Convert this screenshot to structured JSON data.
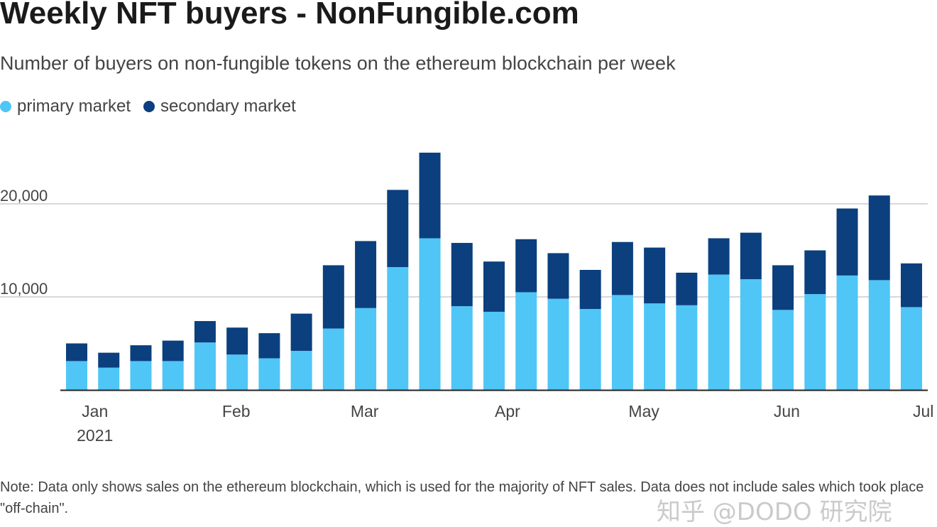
{
  "header": {
    "title": "Weekly NFT buyers - NonFungible.com",
    "subtitle": "Number of buyers on non-fungible tokens on the ethereum blockchain per week"
  },
  "footer": {
    "note": "Note: Data only shows sales on the ethereum blockchain, which is used for the majority of NFT sales. Data does not include sales which took place \"off-chain\".",
    "watermark": "知乎 @DODO 研究院"
  },
  "colors": {
    "primary": "#4fc6f6",
    "secondary": "#0b3f7e",
    "grid": "#cccccc",
    "axis": "#222222"
  },
  "chart_data": {
    "type": "bar",
    "stacked": true,
    "title": "Weekly NFT buyers - NonFungible.com",
    "ylim": [
      0,
      26000
    ],
    "yticks": [
      10000,
      20000
    ],
    "ytick_labels": [
      "10,000",
      "20,000"
    ],
    "grid": true,
    "legend_position": "top-left",
    "legend": [
      "primary market",
      "secondary market"
    ],
    "xtick_labels": [
      {
        "label": "Jan",
        "sub": "2021",
        "week": 0.9
      },
      {
        "label": "Feb",
        "week": 5.3
      },
      {
        "label": "Mar",
        "week": 9.3
      },
      {
        "label": "Apr",
        "week": 13.75
      },
      {
        "label": "May",
        "week": 18
      },
      {
        "label": "Jun",
        "week": 22.45
      },
      {
        "label": "Jul",
        "week": 26.7
      }
    ],
    "series": [
      {
        "name": "primary market",
        "values": [
          3100,
          2400,
          3100,
          3100,
          5100,
          3800,
          3400,
          4200,
          6600,
          8800,
          13200,
          16300,
          9000,
          8400,
          10500,
          9800,
          8700,
          10200,
          9300,
          9100,
          12400,
          11900,
          8600,
          10300,
          12300,
          11800,
          8900
        ]
      },
      {
        "name": "secondary market",
        "values": [
          1900,
          1600,
          1700,
          2200,
          2300,
          2900,
          2700,
          4000,
          6800,
          7200,
          8300,
          9200,
          6800,
          5400,
          5700,
          4900,
          4200,
          5700,
          6000,
          3500,
          3900,
          5000,
          4800,
          4700,
          7200,
          9100,
          4700
        ]
      }
    ]
  }
}
